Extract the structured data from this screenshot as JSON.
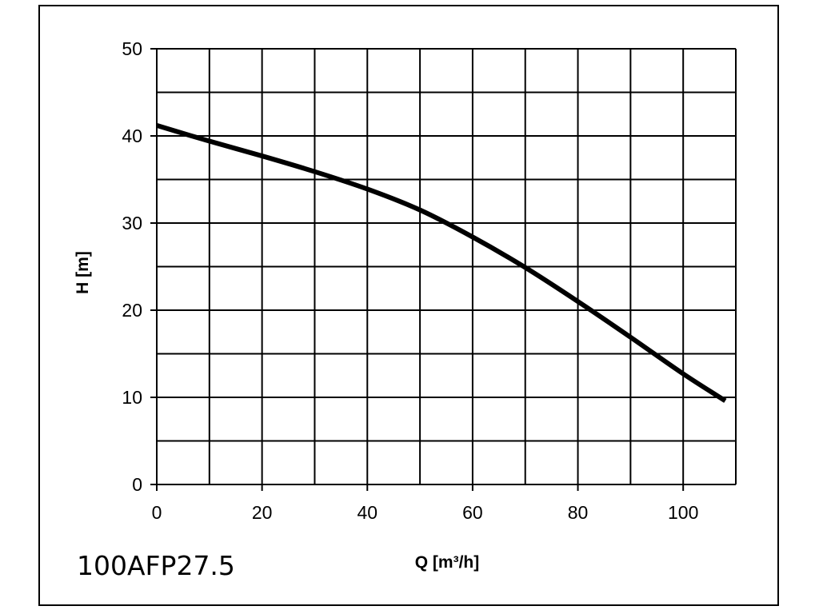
{
  "chart_data": {
    "type": "line",
    "model_label": "100AFP27.5",
    "xlabel": "Q [m³/h]",
    "ylabel": "H [m]",
    "xlim": [
      0,
      110
    ],
    "ylim": [
      0,
      50
    ],
    "x_ticks": [
      0,
      20,
      40,
      60,
      80,
      100
    ],
    "y_ticks": [
      0,
      10,
      20,
      30,
      40,
      50
    ],
    "x_tick_labels": [
      "0",
      "20",
      "40",
      "60",
      "80",
      "100"
    ],
    "y_tick_labels": [
      "0",
      "10",
      "20",
      "30",
      "40",
      "50"
    ],
    "x_grid_step": 10,
    "y_grid_step": 5,
    "grid": true,
    "legend": "none",
    "series": [
      {
        "color": "#000000",
        "x": [
          0,
          10,
          20,
          30,
          40,
          50,
          60,
          70,
          80,
          90,
          100,
          108
        ],
        "y": [
          41.2,
          39.4,
          37.7,
          35.9,
          33.9,
          31.5,
          28.4,
          24.9,
          21.0,
          16.9,
          12.7,
          9.6
        ]
      }
    ]
  }
}
